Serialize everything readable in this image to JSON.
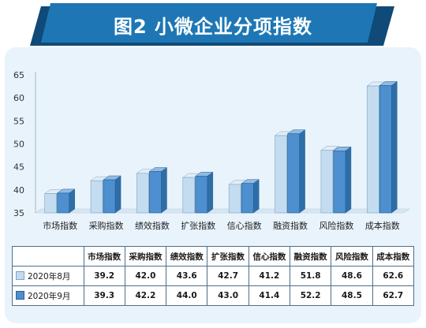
{
  "title": "图2 小微企业分项指数",
  "colors": {
    "header_dark": "#0f4a78",
    "header_light": "#1e77b4",
    "panel": "#e9f3fb",
    "aug_bar": "#c3dcef",
    "sep_bar": "#4d8fcf"
  },
  "chart_data": {
    "type": "bar",
    "categories": [
      "市场指数",
      "采购指数",
      "绩效指数",
      "扩张指数",
      "信心指数",
      "融资指数",
      "风险指数",
      "成本指数"
    ],
    "series": [
      {
        "name": "2020年8月",
        "values": [
          39.2,
          42.0,
          43.6,
          42.7,
          41.2,
          51.8,
          48.6,
          62.6
        ]
      },
      {
        "name": "2020年9月",
        "values": [
          39.3,
          42.2,
          44.0,
          43.0,
          41.4,
          52.2,
          48.5,
          62.7
        ]
      }
    ],
    "y_ticks": [
      "35",
      "40",
      "45",
      "50",
      "55",
      "60",
      "65"
    ],
    "ylim": [
      35,
      65
    ],
    "grid": false,
    "legend": "table-below"
  },
  "table": {
    "rows": [
      {
        "label": "2020年8月",
        "cells": [
          "39.2",
          "42.0",
          "43.6",
          "42.7",
          "41.2",
          "51.8",
          "48.6",
          "62.6"
        ]
      },
      {
        "label": "2020年9月",
        "cells": [
          "39.3",
          "42.2",
          "44.0",
          "43.0",
          "41.4",
          "52.2",
          "48.5",
          "62.7"
        ]
      }
    ]
  }
}
